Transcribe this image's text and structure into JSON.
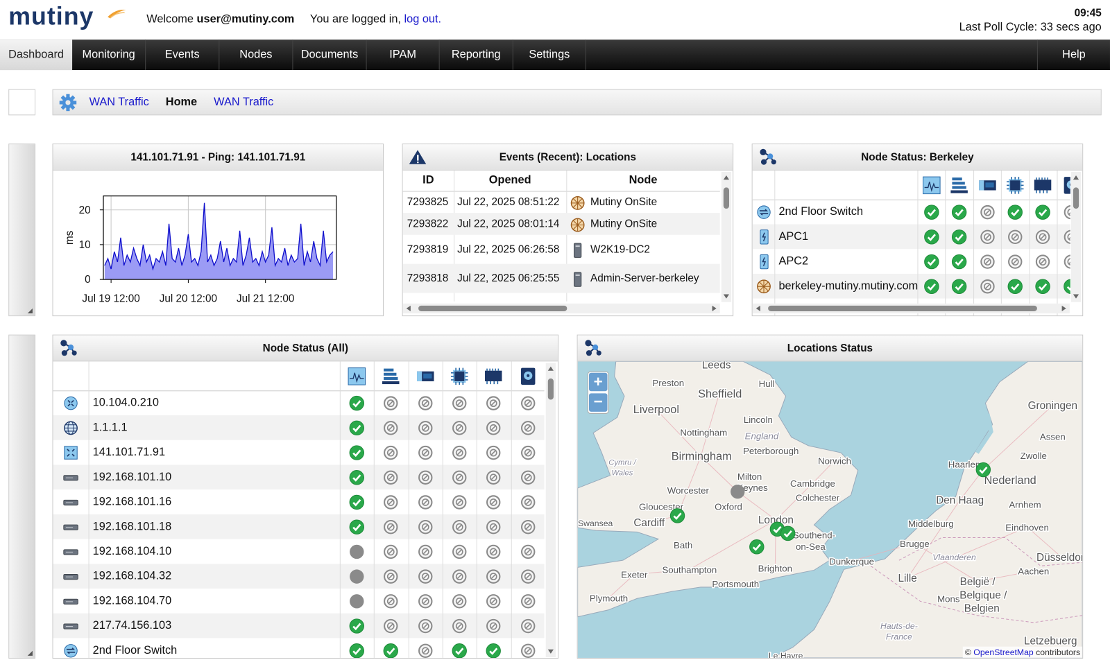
{
  "header": {
    "logo": "mutiny",
    "welcome": "Welcome",
    "user": "user@mutiny.com",
    "logged_in": "You are logged in,",
    "logout": "log out.",
    "time": "09:45",
    "last_poll": "Last Poll Cycle: 33 secs ago"
  },
  "nav": {
    "items": [
      "Dashboard",
      "Monitoring",
      "Events",
      "Nodes",
      "Documents",
      "IPAM",
      "Reporting",
      "Settings"
    ],
    "help": "Help"
  },
  "breadcrumb": [
    "WAN Traffic",
    "Home",
    "WAN Traffic"
  ],
  "chart_data": {
    "type": "area",
    "title": "141.101.71.91 - Ping: 141.101.71.91",
    "y_label": "ms",
    "x": [
      10,
      11,
      12,
      13,
      14,
      15,
      16,
      17,
      18,
      19,
      20,
      21,
      22,
      23,
      24,
      25,
      26,
      27,
      28,
      29,
      30,
      31,
      32,
      33,
      34,
      35,
      36,
      37,
      38,
      39,
      40,
      41,
      42,
      43,
      44,
      45,
      46,
      47,
      48,
      49,
      50,
      51,
      52,
      53,
      54,
      55,
      56,
      57,
      58,
      59,
      60,
      61,
      62,
      63,
      64,
      65,
      66,
      67,
      68,
      69,
      70,
      71,
      72,
      73,
      74,
      75,
      76,
      77,
      78,
      79,
      80,
      81
    ],
    "values": [
      4,
      6,
      3,
      8,
      5,
      12,
      4,
      7,
      5,
      9,
      6,
      4,
      10,
      5,
      7,
      3,
      6,
      5,
      8,
      4,
      16,
      6,
      5,
      9,
      4,
      7,
      13,
      5,
      6,
      4,
      8,
      22,
      5,
      7,
      4,
      6,
      11,
      5,
      9,
      4,
      6,
      5,
      14,
      4,
      7,
      12,
      5,
      6,
      4,
      8,
      5,
      7,
      15,
      4,
      6,
      5,
      9,
      4,
      7,
      5,
      6,
      16,
      4,
      8,
      5,
      11,
      6,
      4,
      14,
      5,
      7,
      8
    ],
    "color": "#1010cc",
    "fill_color": "#9b9bf5",
    "xlim": [
      9.6,
      82
    ],
    "xticks": [
      {
        "value": 12,
        "label": "Jul 19 12:00"
      },
      {
        "value": 36,
        "label": "Jul 20 12:00"
      },
      {
        "value": 60,
        "label": "Jul 21 12:00"
      }
    ],
    "ylim": [
      0,
      24
    ],
    "yticks": [
      0,
      10,
      20
    ],
    "grid": true
  },
  "events_panel": {
    "title": "Events (Recent): Locations",
    "columns": [
      "ID",
      "Opened",
      "Node"
    ],
    "rows": [
      [
        "7293825",
        "Jul 22, 2025 08:51:22",
        "Mutiny OnSite"
      ],
      [
        "7293822",
        "Jul 22, 2025 08:01:14",
        "Mutiny OnSite"
      ],
      [
        "7293819",
        "Jul 22, 2025 06:26:58",
        "W2K19-DC2"
      ],
      [
        "7293818",
        "Jul 22, 2025 06:25:55",
        "Admin-Server-berkeley"
      ]
    ]
  },
  "berkeley_panel": {
    "title": "Node Status: Berkeley",
    "rows": [
      {
        "name": "2nd Floor Switch",
        "status": [
          "ok",
          "ok",
          "na",
          "ok",
          "ok",
          "na"
        ]
      },
      {
        "name": "APC1",
        "status": [
          "ok",
          "ok",
          "na",
          "na",
          "na",
          "na"
        ]
      },
      {
        "name": "APC2",
        "status": [
          "ok",
          "ok",
          "na",
          "na",
          "na",
          "na"
        ]
      },
      {
        "name": "berkeley-mutiny.mutiny.com",
        "status": [
          "ok",
          "ok",
          "na",
          "ok",
          "ok",
          "ok"
        ]
      }
    ]
  },
  "all_panel": {
    "title": "Node Status (All)",
    "rows": [
      {
        "name": "10.104.0.210",
        "status": [
          "ok",
          "na",
          "na",
          "na",
          "na",
          "na"
        ]
      },
      {
        "name": "1.1.1.1",
        "status": [
          "ok",
          "na",
          "na",
          "na",
          "na",
          "na"
        ]
      },
      {
        "name": "141.101.71.91",
        "status": [
          "ok",
          "na",
          "na",
          "na",
          "na",
          "na"
        ]
      },
      {
        "name": "192.168.101.10",
        "status": [
          "ok",
          "na",
          "na",
          "na",
          "na",
          "na"
        ]
      },
      {
        "name": "192.168.101.16",
        "status": [
          "ok",
          "na",
          "na",
          "na",
          "na",
          "na"
        ]
      },
      {
        "name": "192.168.101.18",
        "status": [
          "ok",
          "na",
          "na",
          "na",
          "na",
          "na"
        ]
      },
      {
        "name": "192.168.104.10",
        "status": [
          "unknown",
          "na",
          "na",
          "na",
          "na",
          "na"
        ]
      },
      {
        "name": "192.168.104.32",
        "status": [
          "unknown",
          "na",
          "na",
          "na",
          "na",
          "na"
        ]
      },
      {
        "name": "192.168.104.70",
        "status": [
          "unknown",
          "na",
          "na",
          "na",
          "na",
          "na"
        ]
      },
      {
        "name": "217.74.156.103",
        "status": [
          "ok",
          "na",
          "na",
          "na",
          "na",
          "na"
        ]
      },
      {
        "name": "2nd Floor Switch",
        "status": [
          "ok",
          "ok",
          "na",
          "ok",
          "ok",
          "na"
        ]
      }
    ]
  },
  "map_panel": {
    "title": "Locations Status",
    "labels": [
      "Leeds",
      "Preston",
      "Hull",
      "Sheffield",
      "Liverpool",
      "Lincoln",
      "Nottingham",
      "England",
      "Peterborough",
      "Birmingham",
      "Norwich",
      "Cymru /",
      "Wales",
      "Milton",
      "Keynes",
      "Cambridge",
      "Worcester",
      "Colchester",
      "Gloucester",
      "Oxford",
      "Swansea",
      "Cardiff",
      "London",
      "Southend-",
      "on-Sea",
      "Bath",
      "Dunkerque",
      "Brighton",
      "Southampton",
      "Portsmouth",
      "Exeter",
      "Plymouth",
      "Groningen",
      "Assen",
      "Zwolle",
      "Haarlem",
      "Nederland",
      "Den Haag",
      "Arnhem",
      "Middelburg",
      "Eindhoven",
      "Brugge",
      "Vlaanderen",
      "Düsseldorf",
      "Lille",
      "Aachen",
      "België /",
      "Belgique /",
      "Belgien",
      "Mons",
      "Hauts-de-",
      "France",
      "Letzebuerg",
      "Le Havre"
    ],
    "zoom_in": "+",
    "zoom_out": "−",
    "attribution_prefix": "©",
    "attribution_link": "OpenStreetMap",
    "attribution_suffix": "contributors"
  }
}
